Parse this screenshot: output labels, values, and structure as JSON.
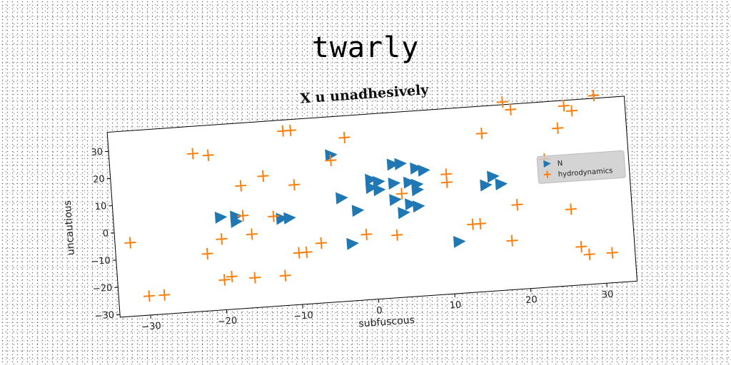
{
  "figure_title": "twarly",
  "chart_data": {
    "type": "scatter",
    "title": "X u unadhesively",
    "xlabel": "subfuscous",
    "ylabel": "uncautious",
    "xlim": [
      -34,
      34
    ],
    "ylim": [
      -31,
      37
    ],
    "xticks": [
      -30,
      -20,
      -10,
      0,
      10,
      20,
      30
    ],
    "yticks": [
      -30,
      -20,
      -10,
      0,
      10,
      20,
      30
    ],
    "grid": false,
    "legend_position": "right",
    "series": [
      {
        "name": "N",
        "marker": "triangle-right",
        "color": "#1f77b4",
        "points": [
          [
            -5,
            23
          ],
          [
            3,
            18
          ],
          [
            4,
            18
          ],
          [
            6,
            16
          ],
          [
            7,
            15
          ],
          [
            0,
            13
          ],
          [
            1,
            12
          ],
          [
            3,
            11
          ],
          [
            0,
            10
          ],
          [
            1,
            9
          ],
          [
            5,
            11
          ],
          [
            6,
            10
          ],
          [
            6,
            8
          ],
          [
            -4,
            7
          ],
          [
            3,
            5
          ],
          [
            5,
            3
          ],
          [
            6,
            2
          ],
          [
            -2,
            2
          ],
          [
            4,
            0
          ],
          [
            -20,
            3
          ],
          [
            -18,
            3
          ],
          [
            -18,
            1
          ],
          [
            -12,
            1
          ],
          [
            -11,
            1
          ],
          [
            -3,
            -10
          ],
          [
            11,
            -12
          ],
          [
            16,
            11
          ],
          [
            15,
            8
          ],
          [
            17,
            8
          ]
        ]
      },
      {
        "name": "hydrodynamics",
        "marker": "plus",
        "color": "#ff7f0e",
        "points": [
          [
            -32,
            -4
          ],
          [
            -30,
            -24
          ],
          [
            -28,
            -24
          ],
          [
            -23,
            27
          ],
          [
            -21,
            26
          ],
          [
            -22,
            -10
          ],
          [
            -20,
            -5
          ],
          [
            -20,
            -20
          ],
          [
            -19,
            -19
          ],
          [
            -17,
            14
          ],
          [
            -17,
            3
          ],
          [
            -16,
            -4
          ],
          [
            -16,
            -20
          ],
          [
            -14,
            17
          ],
          [
            -13,
            2
          ],
          [
            -12,
            -20
          ],
          [
            -11,
            33
          ],
          [
            -10,
            33
          ],
          [
            -10,
            13
          ],
          [
            -10,
            -12
          ],
          [
            -9,
            -12
          ],
          [
            -7,
            -9
          ],
          [
            -5,
            21
          ],
          [
            -3,
            29
          ],
          [
            -1,
            -7
          ],
          [
            3,
            -8
          ],
          [
            4,
            7
          ],
          [
            10,
            10
          ],
          [
            10,
            13
          ],
          [
            13,
            -6
          ],
          [
            14,
            -6
          ],
          [
            15,
            27
          ],
          [
            18,
            -13
          ],
          [
            18,
            38
          ],
          [
            19,
            35
          ],
          [
            19,
            0
          ],
          [
            23,
            16
          ],
          [
            25,
            27
          ],
          [
            26,
            35
          ],
          [
            26,
            -3
          ],
          [
            27,
            -17
          ],
          [
            27,
            33
          ],
          [
            28,
            -20
          ],
          [
            30,
            38
          ],
          [
            31,
            -20
          ]
        ]
      }
    ]
  }
}
